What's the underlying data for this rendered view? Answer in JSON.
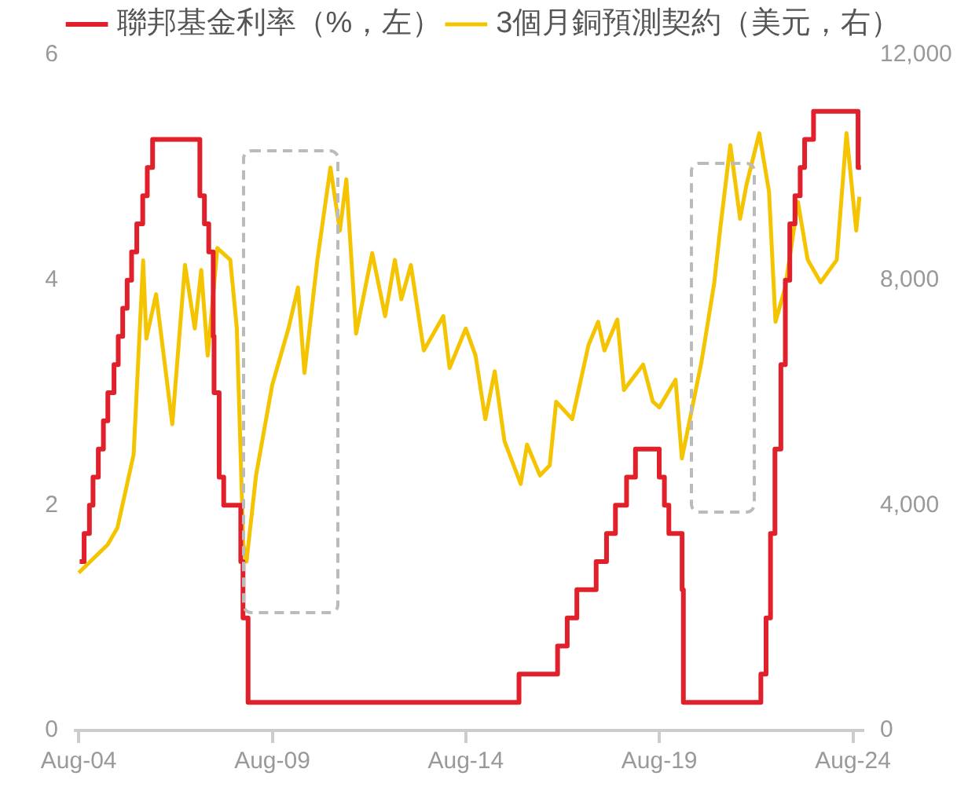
{
  "chart_data": {
    "type": "line",
    "legend": "top",
    "grid": false,
    "marker": "none",
    "xlim": [
      "2004-07",
      "2024-11"
    ],
    "xticks": [
      {
        "value": "2004-08",
        "label": "Aug-04"
      },
      {
        "value": "2009-08",
        "label": "Aug-09"
      },
      {
        "value": "2014-08",
        "label": "Aug-14"
      },
      {
        "value": "2019-08",
        "label": "Aug-19"
      },
      {
        "value": "2024-08",
        "label": "Aug-24"
      }
    ],
    "ylim": [
      0,
      6
    ],
    "yticks": [
      0,
      2,
      4,
      6
    ],
    "y2lim": [
      0,
      12000
    ],
    "y2ticks": [
      {
        "value": 0,
        "label": "0"
      },
      {
        "value": 4000,
        "label": "4,000"
      },
      {
        "value": 8000,
        "label": "8,000"
      },
      {
        "value": 12000,
        "label": "12,000"
      }
    ],
    "series": [
      {
        "name": "聯邦基金利率（%，左）",
        "type": "step",
        "axis": "y",
        "color": "#e0202a",
        "x": [
          "2004-08-10",
          "2004-09-21",
          "2004-11-10",
          "2004-12-14",
          "2005-02-02",
          "2005-03-22",
          "2005-05-03",
          "2005-06-30",
          "2005-08-09",
          "2005-09-20",
          "2005-11-01",
          "2005-12-13",
          "2006-01-31",
          "2006-03-28",
          "2006-05-10",
          "2006-06-29",
          "2007-09-18",
          "2007-10-31",
          "2007-12-11",
          "2008-01-22",
          "2008-01-30",
          "2008-03-18",
          "2008-04-30",
          "2008-10-08",
          "2008-10-29",
          "2008-12-16",
          "2015-12-16",
          "2016-12-14",
          "2017-03-15",
          "2017-06-14",
          "2017-12-13",
          "2018-03-21",
          "2018-06-13",
          "2018-09-26",
          "2018-12-19",
          "2019-07-31",
          "2019-09-18",
          "2019-10-30",
          "2020-03-03",
          "2020-03-15",
          "2022-03-16",
          "2022-05-04",
          "2022-06-15",
          "2022-07-27",
          "2022-09-21",
          "2022-11-02",
          "2022-12-14",
          "2023-02-01",
          "2023-03-22",
          "2023-05-03",
          "2023-07-26",
          "2024-09-18",
          "2024-10-15"
        ],
        "values": [
          1.5,
          1.75,
          2.0,
          2.25,
          2.5,
          2.75,
          3.0,
          3.25,
          3.5,
          3.75,
          4.0,
          4.25,
          4.5,
          4.75,
          5.0,
          5.25,
          4.75,
          4.5,
          4.25,
          3.5,
          3.0,
          2.25,
          2.0,
          1.5,
          1.0,
          0.25,
          0.5,
          0.75,
          1.0,
          1.25,
          1.5,
          1.75,
          2.0,
          2.25,
          2.5,
          2.25,
          2.0,
          1.75,
          1.25,
          0.25,
          0.5,
          1.0,
          1.75,
          2.5,
          3.25,
          4.0,
          4.5,
          4.75,
          5.0,
          5.25,
          5.5,
          5.0,
          5.0
        ]
      },
      {
        "name": "3個月銅預測契約（美元，右）",
        "type": "line",
        "axis": "y2",
        "color": "#f5c400",
        "x": [
          "2004-08",
          "2005-05",
          "2005-08",
          "2006-01",
          "2006-04",
          "2006-05",
          "2006-08",
          "2007-01",
          "2007-05",
          "2007-08",
          "2007-10",
          "2007-12",
          "2008-03",
          "2008-07",
          "2008-09",
          "2008-11",
          "2008-12",
          "2009-03",
          "2009-08",
          "2010-01",
          "2010-04",
          "2010-06",
          "2010-10",
          "2011-02",
          "2011-05",
          "2011-07",
          "2011-10",
          "2012-03",
          "2012-07",
          "2012-10",
          "2012-12",
          "2013-03",
          "2013-07",
          "2014-01",
          "2014-03",
          "2014-08",
          "2014-11",
          "2015-02",
          "2015-05",
          "2015-08",
          "2016-01",
          "2016-03",
          "2016-07",
          "2016-10",
          "2016-12",
          "2017-05",
          "2017-10",
          "2018-01",
          "2018-03",
          "2018-07",
          "2018-09",
          "2019-03",
          "2019-06",
          "2019-08",
          "2020-01",
          "2020-03",
          "2020-09",
          "2021-01",
          "2021-03",
          "2021-06",
          "2021-09",
          "2021-11",
          "2022-03",
          "2022-06",
          "2022-08",
          "2022-11",
          "2023-03",
          "2023-06",
          "2023-10",
          "2024-03",
          "2024-06",
          "2024-09",
          "2024-10"
        ],
        "values": [
          2800,
          3300,
          3600,
          4900,
          8350,
          6960,
          7750,
          5440,
          8270,
          7140,
          8180,
          6660,
          8570,
          8360,
          7140,
          3310,
          3000,
          4530,
          6140,
          7140,
          7870,
          6350,
          8360,
          10000,
          8880,
          9790,
          7050,
          8480,
          7360,
          8360,
          7660,
          8270,
          6750,
          7360,
          6440,
          7140,
          6660,
          5530,
          6380,
          5140,
          4380,
          5080,
          4530,
          4710,
          5840,
          5530,
          6840,
          7260,
          6750,
          7300,
          6050,
          6500,
          5840,
          5740,
          6230,
          4830,
          6540,
          7960,
          8970,
          10400,
          9090,
          9700,
          10610,
          9570,
          7260,
          7870,
          9390,
          8360,
          7960,
          8360,
          10610,
          8880,
          9480
        ]
      }
    ]
  }
}
